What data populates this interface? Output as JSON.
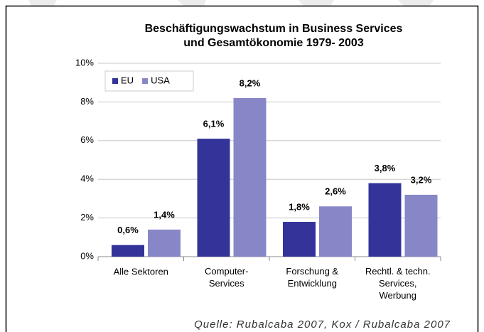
{
  "chart_data": {
    "type": "bar",
    "title": "Beschäftigungswachstum in Business Services\nund Gesamtökonomie 1979- 2003",
    "categories": [
      "Alle Sektoren",
      "Computer-\nServices",
      "Forschung &\nEntwicklung",
      "Rechtl. & techn.\nServices,\nWerbung"
    ],
    "series": [
      {
        "name": "EU",
        "color": "#333399",
        "values": [
          0.6,
          6.1,
          1.8,
          3.8
        ],
        "value_labels": [
          "0,6%",
          "6,1%",
          "1,8%",
          "3,8%"
        ]
      },
      {
        "name": "USA",
        "color": "#8787c8",
        "values": [
          1.4,
          8.2,
          2.6,
          3.2
        ],
        "value_labels": [
          "1,4%",
          "8,2%",
          "2,6%",
          "3,2%"
        ]
      }
    ],
    "ylim": [
      0,
      10
    ],
    "yticks": [
      {
        "value": 0,
        "label": "0%"
      },
      {
        "value": 2,
        "label": "2%"
      },
      {
        "value": 4,
        "label": "4%"
      },
      {
        "value": 6,
        "label": "6%"
      },
      {
        "value": 8,
        "label": "8%"
      },
      {
        "value": 10,
        "label": "10%"
      }
    ],
    "grid": true,
    "legend": "top-left",
    "source": "Quelle: Rubalcaba 2007, Kox / Rubalcaba  2007"
  }
}
